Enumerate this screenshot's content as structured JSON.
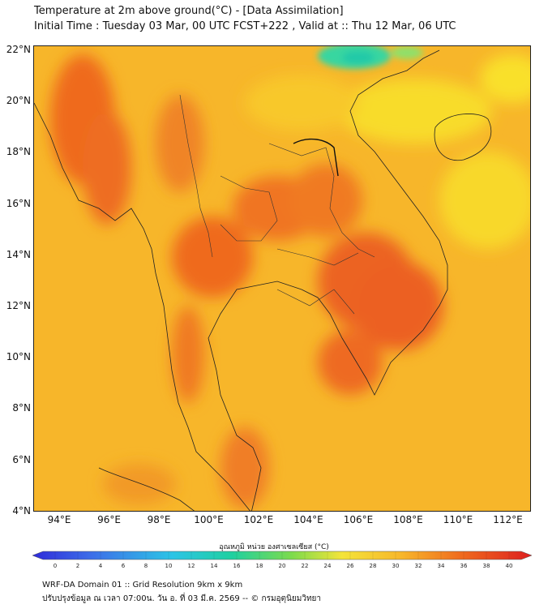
{
  "header": {
    "title": "Temperature at 2m above ground(°C) - [Data Assimilation]",
    "subtitle": "Initial Time : Tuesday 03 Mar, 00 UTC FCST+222 , Valid at :: Thu 12 Mar, 06 UTC"
  },
  "map": {
    "lat_labels": [
      "22°N",
      "20°N",
      "18°N",
      "16°N",
      "14°N",
      "12°N",
      "10°N",
      "8°N",
      "6°N",
      "4°N"
    ],
    "lon_labels": [
      "94°E",
      "96°E",
      "98°E",
      "100°E",
      "102°E",
      "104°E",
      "106°E",
      "108°E",
      "110°E",
      "112°E"
    ],
    "background_color": "#f7b62a",
    "hot_color": "#ef6a1e",
    "cool_color": "#37d6a0"
  },
  "colorbar": {
    "title": "อุณหภูมิ หน่วย องศาเซลเซียส (°C)",
    "ticks": [
      "0",
      "2",
      "4",
      "6",
      "8",
      "10",
      "12",
      "14",
      "16",
      "18",
      "20",
      "22",
      "24",
      "26",
      "28",
      "30",
      "32",
      "34",
      "36",
      "38",
      "40"
    ],
    "min": 0,
    "max": 40
  },
  "footer": {
    "line1": "WRF-DA Domain 01 :: Grid Resolution 9km x 9km",
    "line2": "ปรับปรุงข้อมูล ณ เวลา 07:00น. วัน อ. ที่ 03 มี.ค. 2569 -- © กรมอุตุนิยมวิทยา"
  }
}
